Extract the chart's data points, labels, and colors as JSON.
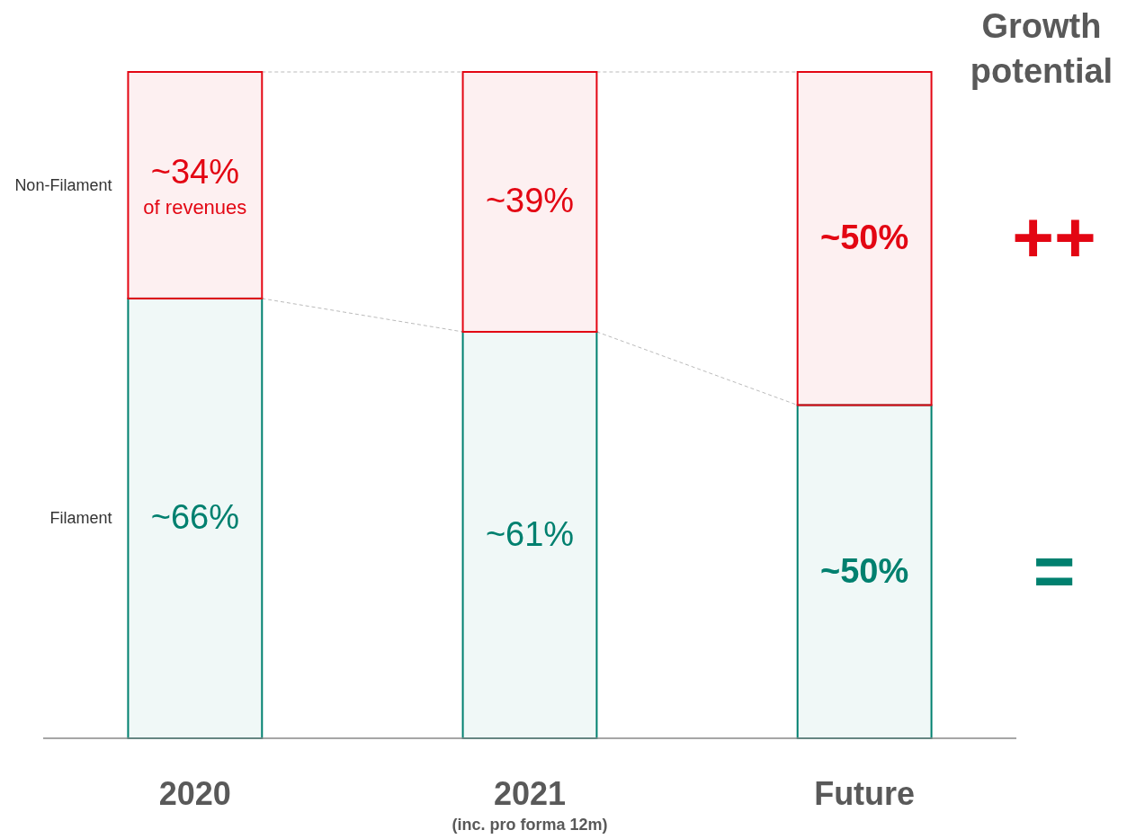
{
  "chart_data": {
    "type": "bar",
    "stacked": true,
    "categories": [
      "2020",
      "2021\n(inc. pro forma 12m)",
      "Future"
    ],
    "series": [
      {
        "name": "Filament",
        "color": "#00806f",
        "values": [
          66,
          61,
          50
        ],
        "value_labels": [
          "~66%",
          "~61%",
          "~50%"
        ]
      },
      {
        "name": "Non-Filament",
        "color": "#e30613",
        "values": [
          34,
          39,
          50
        ],
        "value_labels": [
          "~34%\nof revenues",
          "~39%",
          "~50%"
        ]
      }
    ],
    "annotations": [
      "Growth potential",
      "=",
      "++"
    ]
  }
}
